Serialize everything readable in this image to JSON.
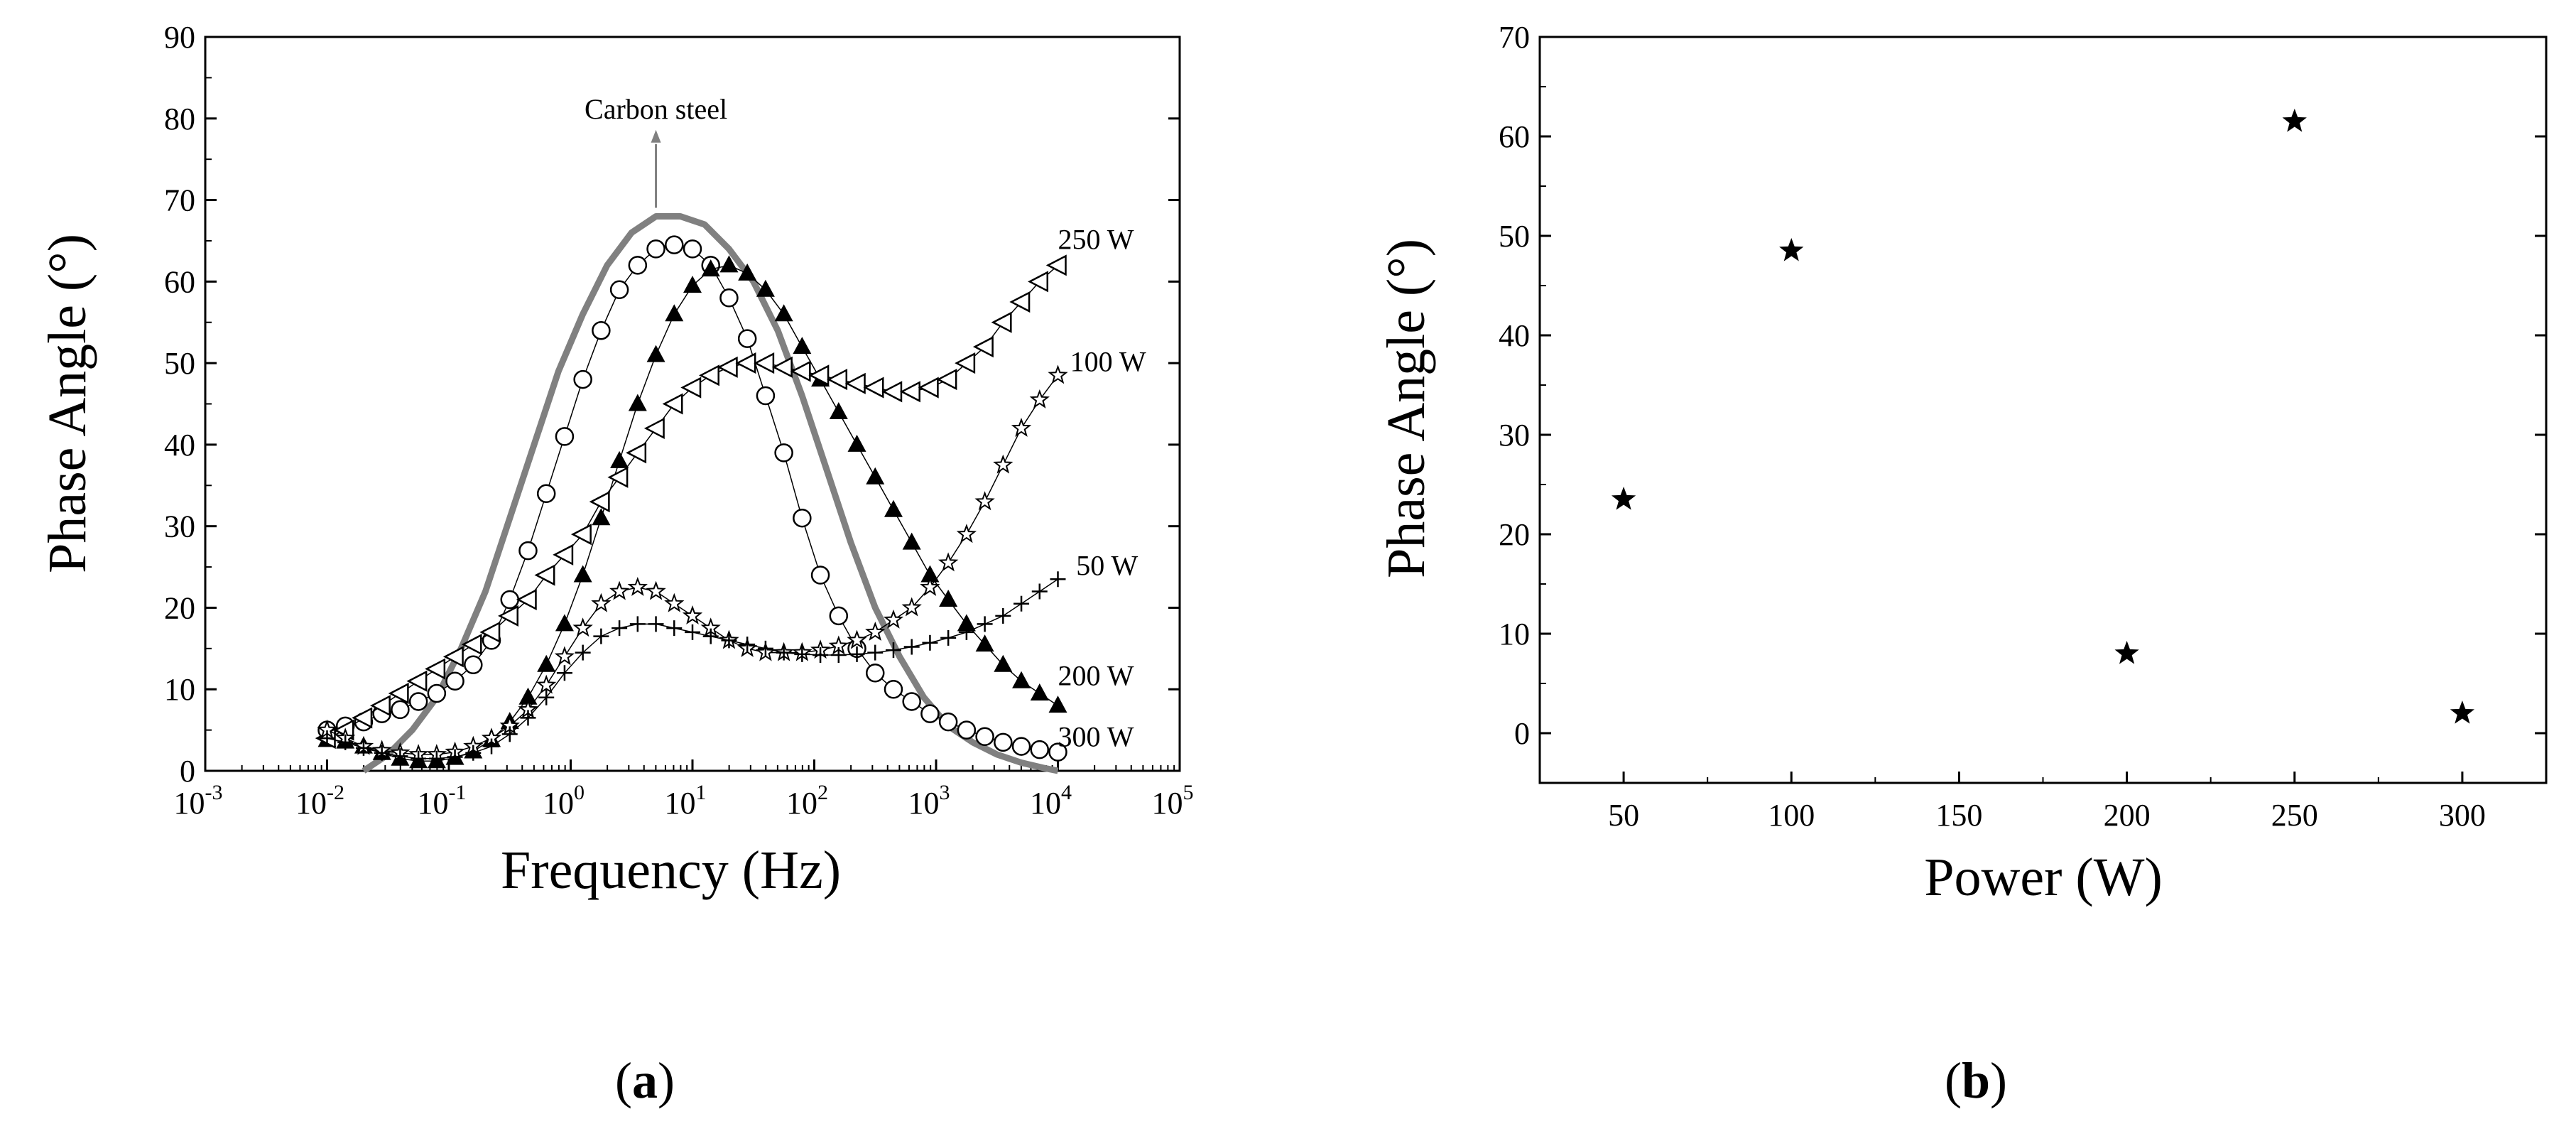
{
  "chart_data": [
    {
      "panel": "(a)",
      "type": "scatter",
      "xscale": "log",
      "xlabel": "Frequency (Hz)",
      "ylabel": "Phase Angle (°)",
      "xlim_log10": [
        -3,
        5
      ],
      "ylim": [
        0,
        90
      ],
      "x_tick_exponents": [
        "-3",
        "-2",
        "-1",
        "0",
        "1",
        "2",
        "3",
        "4",
        "5"
      ],
      "x_tick_base": "10",
      "y_ticks": [
        "0",
        "10",
        "20",
        "30",
        "40",
        "50",
        "60",
        "70",
        "80",
        "90"
      ],
      "annotations": [
        {
          "label": "Carbon steel",
          "x_log10": 0.7,
          "y": 80
        },
        {
          "label": "250 W",
          "x_log10": 4.0,
          "y": 64
        },
        {
          "label": "100 W",
          "x_log10": 4.1,
          "y": 49
        },
        {
          "label": "50 W",
          "x_log10": 4.15,
          "y": 24
        },
        {
          "label": "200 W",
          "x_log10": 4.0,
          "y": 10.5
        },
        {
          "label": "300 W",
          "x_log10": 4.0,
          "y": 3
        }
      ],
      "series": [
        {
          "name": "Carbon steel",
          "marker": "line",
          "color": "#808080",
          "x_log10": [
            -1.7,
            -1.5,
            -1.3,
            -1.1,
            -0.9,
            -0.7,
            -0.5,
            -0.3,
            -0.1,
            0.1,
            0.3,
            0.5,
            0.7,
            0.9,
            1.1,
            1.3,
            1.5,
            1.7,
            1.9,
            2.1,
            2.3,
            2.5,
            2.7,
            2.9,
            3.1,
            3.3,
            3.5,
            3.7,
            3.9,
            4.0
          ],
          "values": [
            0,
            2,
            5,
            9,
            15,
            22,
            31,
            40,
            49,
            56,
            62,
            66,
            68,
            68,
            67,
            64,
            60,
            54,
            46,
            37,
            28,
            20,
            14,
            9,
            5.5,
            3.5,
            2,
            1,
            0.3,
            0
          ]
        },
        {
          "name": "300 W",
          "marker": "circle",
          "x_log10": [
            -2.0,
            -1.85,
            -1.7,
            -1.55,
            -1.4,
            -1.25,
            -1.1,
            -0.95,
            -0.8,
            -0.65,
            -0.5,
            -0.35,
            -0.2,
            -0.05,
            0.1,
            0.25,
            0.4,
            0.55,
            0.7,
            0.85,
            1.0,
            1.15,
            1.3,
            1.45,
            1.6,
            1.75,
            1.9,
            2.05,
            2.2,
            2.35,
            2.5,
            2.65,
            2.8,
            2.95,
            3.1,
            3.25,
            3.4,
            3.55,
            3.7,
            3.85,
            4.0
          ],
          "values": [
            5,
            5.5,
            6,
            7,
            7.5,
            8.5,
            9.5,
            11,
            13,
            16,
            21,
            27,
            34,
            41,
            48,
            54,
            59,
            62,
            64,
            64.5,
            64,
            62,
            58,
            53,
            46,
            39,
            31,
            24,
            19,
            15,
            12,
            10,
            8.5,
            7,
            6,
            5,
            4.2,
            3.5,
            3,
            2.6,
            2.3
          ]
        },
        {
          "name": "200 W",
          "marker": "triangle-up",
          "x_log10": [
            -2.0,
            -1.85,
            -1.7,
            -1.55,
            -1.4,
            -1.25,
            -1.1,
            -0.95,
            -0.8,
            -0.65,
            -0.5,
            -0.35,
            -0.2,
            -0.05,
            0.1,
            0.25,
            0.4,
            0.55,
            0.7,
            0.85,
            1.0,
            1.15,
            1.3,
            1.45,
            1.6,
            1.75,
            1.9,
            2.05,
            2.2,
            2.35,
            2.5,
            2.65,
            2.8,
            2.95,
            3.1,
            3.25,
            3.4,
            3.55,
            3.7,
            3.85,
            4.0
          ],
          "values": [
            3.8,
            3.6,
            3,
            2.2,
            1.5,
            1.2,
            1.2,
            1.6,
            2.4,
            3.8,
            6,
            9,
            13,
            18,
            24,
            31,
            38,
            45,
            51,
            56,
            59.5,
            61.5,
            62,
            61,
            59,
            56,
            52,
            48,
            44,
            40,
            36,
            32,
            28,
            24,
            21,
            18,
            15.5,
            13,
            11,
            9.5,
            8
          ]
        },
        {
          "name": "250 W",
          "marker": "triangle-left",
          "x_log10": [
            -2.0,
            -1.85,
            -1.7,
            -1.55,
            -1.4,
            -1.25,
            -1.1,
            -0.95,
            -0.8,
            -0.65,
            -0.5,
            -0.35,
            -0.2,
            -0.05,
            0.1,
            0.25,
            0.4,
            0.55,
            0.7,
            0.85,
            1.0,
            1.15,
            1.3,
            1.45,
            1.6,
            1.75,
            1.9,
            2.05,
            2.2,
            2.35,
            2.5,
            2.65,
            2.8,
            2.95,
            3.1,
            3.25,
            3.4,
            3.55,
            3.7,
            3.85,
            4.0
          ],
          "values": [
            4,
            5,
            6.5,
            8,
            9.5,
            11,
            12.5,
            14,
            15.5,
            17,
            19,
            21,
            24,
            26.5,
            29,
            33,
            36,
            39,
            42,
            45,
            47,
            48.5,
            49.5,
            50,
            50,
            49.5,
            49,
            48.5,
            48,
            47.5,
            47,
            46.5,
            46.5,
            47,
            48,
            50,
            52,
            55,
            57.5,
            60,
            62
          ]
        },
        {
          "name": "100 W",
          "marker": "star",
          "x_log10": [
            -2.0,
            -1.85,
            -1.7,
            -1.55,
            -1.4,
            -1.25,
            -1.1,
            -0.95,
            -0.8,
            -0.65,
            -0.5,
            -0.35,
            -0.2,
            -0.05,
            0.1,
            0.25,
            0.4,
            0.55,
            0.7,
            0.85,
            1.0,
            1.15,
            1.3,
            1.45,
            1.6,
            1.75,
            1.9,
            2.05,
            2.2,
            2.35,
            2.5,
            2.65,
            2.8,
            2.95,
            3.1,
            3.25,
            3.4,
            3.55,
            3.7,
            3.85,
            4.0
          ],
          "values": [
            5,
            4,
            3,
            2.5,
            2.2,
            2,
            2,
            2.3,
            3,
            4,
            5.5,
            7.5,
            10.5,
            14,
            17.5,
            20.5,
            22,
            22.5,
            22,
            20.5,
            19,
            17.5,
            16,
            15,
            14.5,
            14.5,
            14.5,
            14.8,
            15.3,
            16,
            17,
            18.5,
            20,
            22.5,
            25.5,
            29,
            33,
            37.5,
            42,
            45.5,
            48.5
          ]
        },
        {
          "name": "50 W",
          "marker": "plus",
          "x_log10": [
            -2.0,
            -1.85,
            -1.7,
            -1.55,
            -1.4,
            -1.25,
            -1.1,
            -0.95,
            -0.8,
            -0.65,
            -0.5,
            -0.35,
            -0.2,
            -0.05,
            0.1,
            0.25,
            0.4,
            0.55,
            0.7,
            0.85,
            1.0,
            1.15,
            1.3,
            1.45,
            1.6,
            1.75,
            1.9,
            2.05,
            2.2,
            2.35,
            2.5,
            2.65,
            2.8,
            2.95,
            3.1,
            3.25,
            3.4,
            3.55,
            3.7,
            3.85,
            4.0
          ],
          "values": [
            4,
            3.5,
            2.8,
            2.2,
            1.8,
            1.5,
            1.5,
            1.7,
            2.2,
            3,
            4.5,
            6.5,
            9,
            12,
            14.5,
            16.5,
            17.5,
            18,
            18,
            17.5,
            17,
            16.5,
            16,
            15.5,
            15,
            14.5,
            14.3,
            14.2,
            14.2,
            14.3,
            14.5,
            14.8,
            15.2,
            15.7,
            16.3,
            17,
            18,
            19,
            20.5,
            22,
            23.5
          ]
        }
      ]
    },
    {
      "panel": "(b)",
      "type": "scatter",
      "xlabel": "Power (W)",
      "ylabel": "Phase Angle (°)",
      "xlim": [
        25,
        325
      ],
      "ylim": [
        -5,
        70
      ],
      "x_ticks": [
        "50",
        "100",
        "150",
        "200",
        "250",
        "300"
      ],
      "y_ticks": [
        "0",
        "10",
        "20",
        "30",
        "40",
        "50",
        "60",
        "70"
      ],
      "marker": "filled-star",
      "x": [
        50,
        100,
        200,
        250,
        300
      ],
      "values": [
        23.5,
        48.5,
        8,
        61.5,
        2
      ]
    }
  ],
  "captions": {
    "a": "a",
    "b": "b"
  }
}
